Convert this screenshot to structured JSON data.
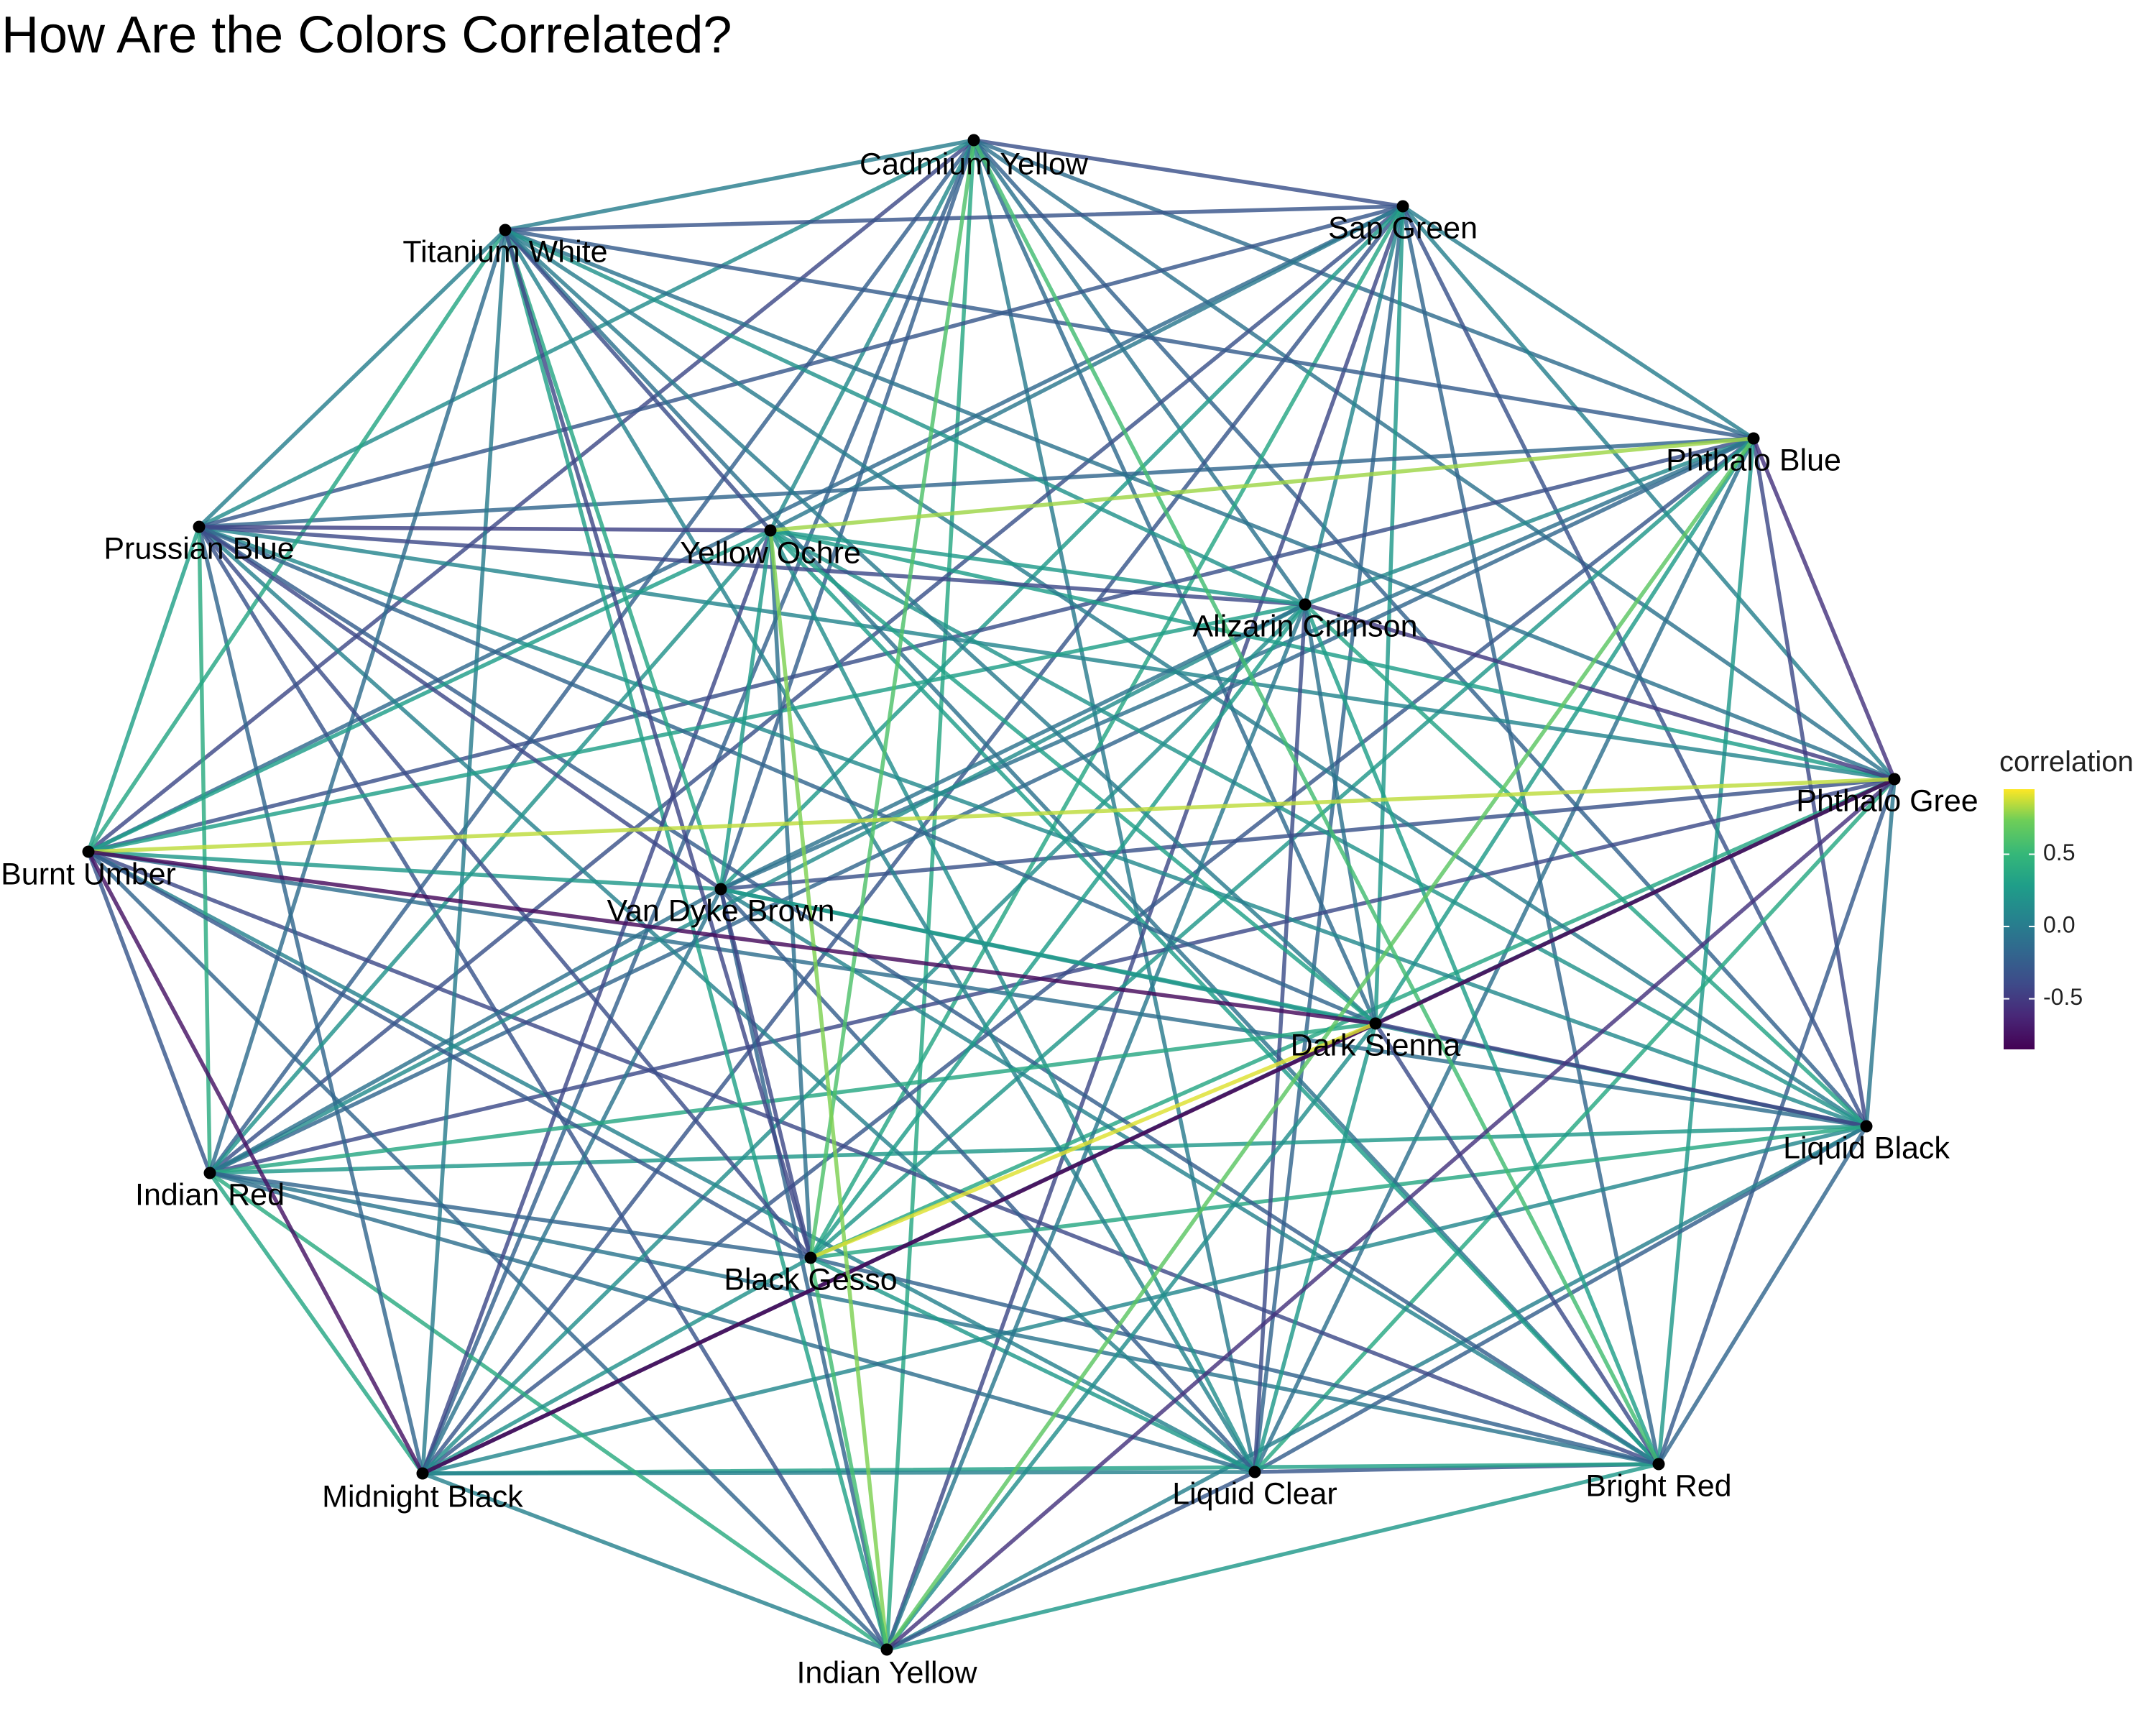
{
  "title": "How Are the Colors Correlated?",
  "legend": {
    "title": "correlation",
    "ticks": [
      "0.5",
      "0.0",
      "-0.5"
    ],
    "tick_values": [
      0.5,
      0.0,
      -0.5
    ],
    "range": [
      -0.85,
      0.95
    ],
    "colormap": "viridis"
  },
  "nodes": [
    {
      "name": "Cadmium Yellow"
    },
    {
      "name": "Sap Green"
    },
    {
      "name": "Phthalo Blue"
    },
    {
      "name": "Phthalo Gree"
    },
    {
      "name": "Liquid Black"
    },
    {
      "name": "Bright Red"
    },
    {
      "name": "Liquid Clear"
    },
    {
      "name": "Indian Yellow"
    },
    {
      "name": "Midnight Black"
    },
    {
      "name": "Indian Red"
    },
    {
      "name": "Burnt Umber"
    },
    {
      "name": "Prussian Blue"
    },
    {
      "name": "Titanium White"
    },
    {
      "name": "Yellow Ochre"
    },
    {
      "name": "Alizarin Crimson"
    },
    {
      "name": "Van Dyke Brown"
    },
    {
      "name": "Dark Sienna"
    },
    {
      "name": "Black Gesso"
    }
  ],
  "highlighted_correlations": [
    {
      "a": "Burnt Umber",
      "b": "Phthalo Gree",
      "r": 0.85
    },
    {
      "a": "Yellow Ochre",
      "b": "Phthalo Blue",
      "r": 0.8
    },
    {
      "a": "Yellow Ochre",
      "b": "Indian Yellow",
      "r": 0.75
    },
    {
      "a": "Phthalo Blue",
      "b": "Indian Yellow",
      "r": 0.65
    },
    {
      "a": "Cadmium Yellow",
      "b": "Black Gesso",
      "r": 0.6
    },
    {
      "a": "Cadmium Yellow",
      "b": "Bright Red",
      "r": 0.55
    },
    {
      "a": "Dark Sienna",
      "b": "Black Gesso",
      "r": 0.9
    },
    {
      "a": "Black Gesso",
      "b": "Indian Yellow",
      "r": 0.55
    },
    {
      "a": "Midnight Black",
      "b": "Phthalo Gree",
      "r": -0.85
    },
    {
      "a": "Burnt Umber",
      "b": "Dark Sienna",
      "r": -0.8
    },
    {
      "a": "Burnt Umber",
      "b": "Midnight Black",
      "r": -0.75
    },
    {
      "a": "Phthalo Blue",
      "b": "Phthalo Gree",
      "r": -0.55
    },
    {
      "a": "Prussian Blue",
      "b": "Yellow Ochre",
      "r": -0.45
    },
    {
      "a": "Alizarin Crimson",
      "b": "Phthalo Gree",
      "r": -0.5
    },
    {
      "a": "Phthalo Gree",
      "b": "Indian Yellow",
      "r": -0.55
    },
    {
      "a": "Liquid Black",
      "b": "Dark Sienna",
      "r": -0.45
    },
    {
      "a": "Cadmium Yellow",
      "b": "Sap Green",
      "r": -0.35
    },
    {
      "a": "Liquid Clear",
      "b": "Bright Red",
      "r": -0.3
    }
  ]
}
